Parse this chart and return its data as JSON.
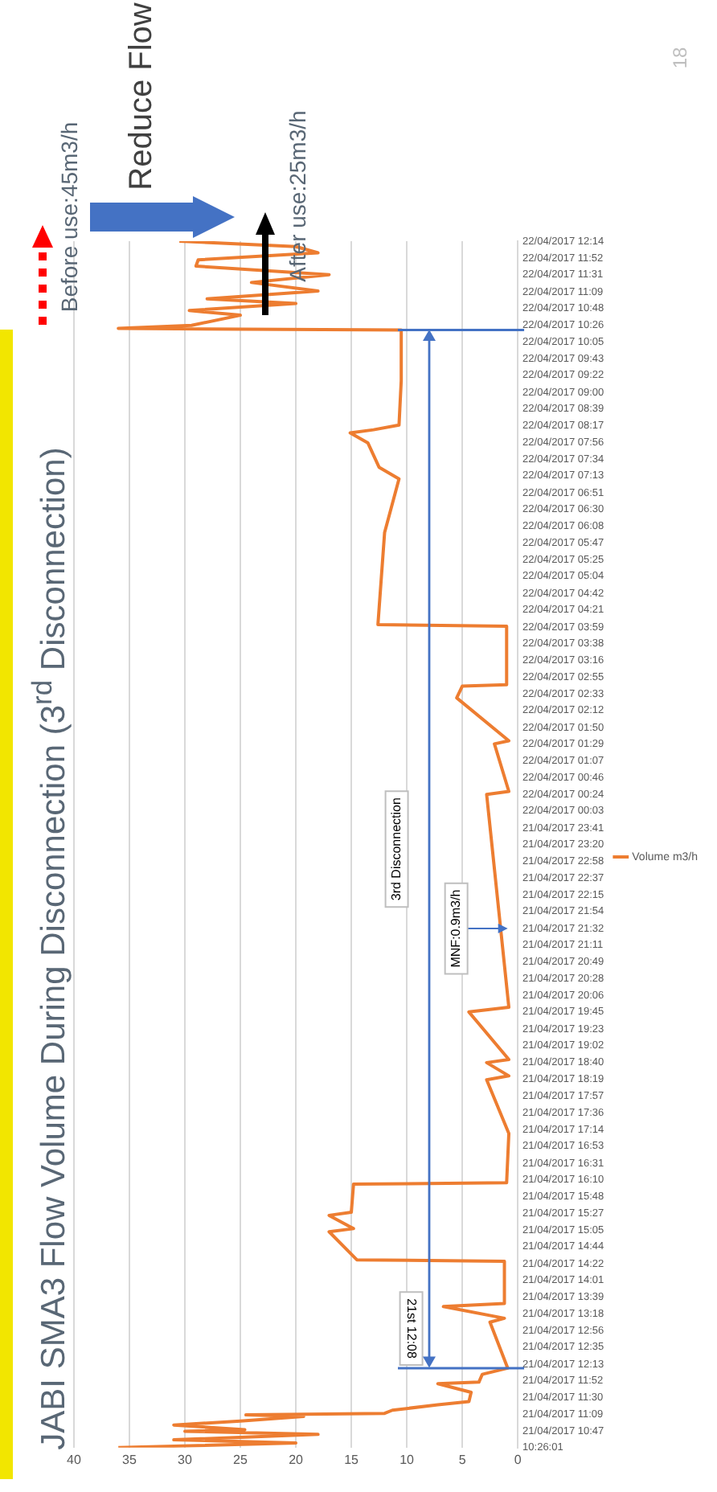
{
  "chart_data": {
    "type": "line",
    "title": "JABI SMA3 Flow Volume During Disconnection (3$^{rd}$ Disconnection)",
    "x": [
      "2017-04-21T10:26",
      "2017-04-21T10:32",
      "2017-04-21T10:36",
      "2017-04-21T10:43",
      "2017-04-21T10:47",
      "2017-04-21T10:49",
      "2017-04-21T10:55",
      "2017-04-21T11:00",
      "2017-04-21T11:06",
      "2017-04-21T11:08",
      "2017-04-21T11:10",
      "2017-04-21T11:14",
      "2017-04-21T11:21",
      "2017-04-21T11:25",
      "2017-04-21T11:37",
      "2017-04-21T11:48",
      "2017-04-21T11:50",
      "2017-04-21T12:00",
      "2017-04-21T12:08",
      "2017-04-21T13:07",
      "2017-04-21T13:12",
      "2017-04-21T13:27",
      "2017-04-21T13:31",
      "2017-04-21T14:25",
      "2017-04-21T14:27",
      "2017-04-21T15:03",
      "2017-04-21T15:07",
      "2017-04-21T15:24",
      "2017-04-21T15:28",
      "2017-04-21T16:04",
      "2017-04-21T16:06",
      "2017-04-21T17:09",
      "2017-04-21T18:18",
      "2017-04-21T18:23",
      "2017-04-21T18:40",
      "2017-04-21T18:44",
      "2017-04-21T19:45",
      "2017-04-21T19:51",
      "2017-04-22T00:24",
      "2017-04-22T00:28",
      "2017-04-22T01:29",
      "2017-04-22T01:33",
      "2017-04-22T02:28",
      "2017-04-22T02:43",
      "2017-04-22T02:45",
      "2017-04-22T04:00",
      "2017-04-22T04:02",
      "2017-04-22T06:00",
      "2017-04-22T07:09",
      "2017-04-22T07:24",
      "2017-04-22T07:55",
      "2017-04-22T08:08",
      "2017-04-22T08:12",
      "2017-04-22T08:18",
      "2017-04-22T09:15",
      "2017-04-22T10:20",
      "2017-04-22T10:22",
      "2017-04-22T10:26",
      "2017-04-22T10:39",
      "2017-04-22T10:45",
      "2017-04-22T10:54",
      "2017-04-22T11:00",
      "2017-04-22T11:10",
      "2017-04-22T11:21",
      "2017-04-22T11:31",
      "2017-04-22T11:42",
      "2017-04-22T11:50",
      "2017-04-22T11:59",
      "2017-04-22T12:07",
      "2017-04-22T12:14"
    ],
    "series": [
      {
        "name": "Volume m3/h",
        "color": "#ed7d31",
        "values": [
          36,
          20,
          31,
          18,
          30,
          24.6,
          31,
          25,
          19.3,
          24.5,
          12,
          11.3,
          7.2,
          4.4,
          4.2,
          7.2,
          3.5,
          3.2,
          0.9,
          2.5,
          1.2,
          6.7,
          1.2,
          1.2,
          14.5,
          17,
          14.8,
          17,
          15,
          14.8,
          1.0,
          0.8,
          2.8,
          0.8,
          2.8,
          0.8,
          4.4,
          0.8,
          2.8,
          0.8,
          2.1,
          0.8,
          5.5,
          5.0,
          1.0,
          1.0,
          12.6,
          12,
          10.7,
          12.5,
          13.5,
          15.1,
          13,
          10.7,
          10.5,
          10.5,
          36,
          29.4,
          25,
          29.6,
          20,
          28,
          18,
          24,
          17,
          29,
          28.8,
          18,
          20,
          30.5
        ]
      }
    ],
    "orientation": "horizontal",
    "xlim": [
      40,
      0
    ],
    "xticks": [
      0,
      5,
      10,
      15,
      20,
      25,
      30,
      35,
      40
    ],
    "ylim": [
      "2017-04-21T10:26",
      "2017-04-22T12:14"
    ],
    "yticks": [
      {
        "value": "2017-04-21T10:26",
        "label": "10:26:01"
      },
      {
        "value": "2017-04-21T10:47",
        "label": "21/04/2017 10:47"
      },
      {
        "value": "2017-04-21T11:09",
        "label": "21/04/2017 11:09"
      },
      {
        "value": "2017-04-21T11:30",
        "label": "21/04/2017 11:30"
      },
      {
        "value": "2017-04-21T11:52",
        "label": "21/04/2017 11:52"
      },
      {
        "value": "2017-04-21T12:13",
        "label": "21/04/2017 12:13"
      },
      {
        "value": "2017-04-21T12:35",
        "label": "21/04/2017 12:35"
      },
      {
        "value": "2017-04-21T12:56",
        "label": "21/04/2017 12:56"
      },
      {
        "value": "2017-04-21T13:18",
        "label": "21/04/2017 13:18"
      },
      {
        "value": "2017-04-21T13:39",
        "label": "21/04/2017 13:39"
      },
      {
        "value": "2017-04-21T14:01",
        "label": "21/04/2017 14:01"
      },
      {
        "value": "2017-04-21T14:22",
        "label": "21/04/2017 14:22"
      },
      {
        "value": "2017-04-21T14:44",
        "label": "21/04/2017 14:44"
      },
      {
        "value": "2017-04-21T15:05",
        "label": "21/04/2017 15:05"
      },
      {
        "value": "2017-04-21T15:27",
        "label": "21/04/2017 15:27"
      },
      {
        "value": "2017-04-21T15:48",
        "label": "21/04/2017 15:48"
      },
      {
        "value": "2017-04-21T16:10",
        "label": "21/04/2017 16:10"
      },
      {
        "value": "2017-04-21T16:31",
        "label": "21/04/2017 16:31"
      },
      {
        "value": "2017-04-21T16:53",
        "label": "21/04/2017 16:53"
      },
      {
        "value": "2017-04-21T17:14",
        "label": "21/04/2017 17:14"
      },
      {
        "value": "2017-04-21T17:36",
        "label": "21/04/2017 17:36"
      },
      {
        "value": "2017-04-21T17:57",
        "label": "21/04/2017 17:57"
      },
      {
        "value": "2017-04-21T18:19",
        "label": "21/04/2017 18:19"
      },
      {
        "value": "2017-04-21T18:40",
        "label": "21/04/2017 18:40"
      },
      {
        "value": "2017-04-21T19:02",
        "label": "21/04/2017 19:02"
      },
      {
        "value": "2017-04-21T19:23",
        "label": "21/04/2017 19:23"
      },
      {
        "value": "2017-04-21T19:45",
        "label": "21/04/2017 19:45"
      },
      {
        "value": "2017-04-21T20:06",
        "label": "21/04/2017 20:06"
      },
      {
        "value": "2017-04-21T20:28",
        "label": "21/04/2017 20:28"
      },
      {
        "value": "2017-04-21T20:49",
        "label": "21/04/2017 20:49"
      },
      {
        "value": "2017-04-21T21:11",
        "label": "21/04/2017 21:11"
      },
      {
        "value": "2017-04-21T21:32",
        "label": "21/04/2017 21:32"
      },
      {
        "value": "2017-04-21T21:54",
        "label": "21/04/2017 21:54"
      },
      {
        "value": "2017-04-21T22:15",
        "label": "21/04/2017 22:15"
      },
      {
        "value": "2017-04-21T22:37",
        "label": "21/04/2017 22:37"
      },
      {
        "value": "2017-04-21T22:58",
        "label": "21/04/2017 22:58"
      },
      {
        "value": "2017-04-21T23:20",
        "label": "21/04/2017 23:20"
      },
      {
        "value": "2017-04-21T23:41",
        "label": "21/04/2017 23:41"
      },
      {
        "value": "2017-04-22T00:03",
        "label": "22/04/2017 00:03"
      },
      {
        "value": "2017-04-22T00:24",
        "label": "22/04/2017 00:24"
      },
      {
        "value": "2017-04-22T00:46",
        "label": "22/04/2017 00:46"
      },
      {
        "value": "2017-04-22T01:07",
        "label": "22/04/2017 01:07"
      },
      {
        "value": "2017-04-22T01:29",
        "label": "22/04/2017 01:29"
      },
      {
        "value": "2017-04-22T01:50",
        "label": "22/04/2017 01:50"
      },
      {
        "value": "2017-04-22T02:12",
        "label": "22/04/2017 02:12"
      },
      {
        "value": "2017-04-22T02:33",
        "label": "22/04/2017 02:33"
      },
      {
        "value": "2017-04-22T02:55",
        "label": "22/04/2017 02:55"
      },
      {
        "value": "2017-04-22T03:16",
        "label": "22/04/2017 03:16"
      },
      {
        "value": "2017-04-22T03:38",
        "label": "22/04/2017 03:38"
      },
      {
        "value": "2017-04-22T03:59",
        "label": "22/04/2017 03:59"
      },
      {
        "value": "2017-04-22T04:21",
        "label": "22/04/2017 04:21"
      },
      {
        "value": "2017-04-22T04:42",
        "label": "22/04/2017 04:42"
      },
      {
        "value": "2017-04-22T05:04",
        "label": "22/04/2017 05:04"
      },
      {
        "value": "2017-04-22T05:25",
        "label": "22/04/2017 05:25"
      },
      {
        "value": "2017-04-22T05:47",
        "label": "22/04/2017 05:47"
      },
      {
        "value": "2017-04-22T06:08",
        "label": "22/04/2017 06:08"
      },
      {
        "value": "2017-04-22T06:30",
        "label": "22/04/2017 06:30"
      },
      {
        "value": "2017-04-22T06:51",
        "label": "22/04/2017 06:51"
      },
      {
        "value": "2017-04-22T07:13",
        "label": "22/04/2017 07:13"
      },
      {
        "value": "2017-04-22T07:34",
        "label": "22/04/2017 07:34"
      },
      {
        "value": "2017-04-22T07:56",
        "label": "22/04/2017 07:56"
      },
      {
        "value": "2017-04-22T08:17",
        "label": "22/04/2017 08:17"
      },
      {
        "value": "2017-04-22T08:39",
        "label": "22/04/2017 08:39"
      },
      {
        "value": "2017-04-22T09:00",
        "label": "22/04/2017 09:00"
      },
      {
        "value": "2017-04-22T09:22",
        "label": "22/04/2017 09:22"
      },
      {
        "value": "2017-04-22T09:43",
        "label": "22/04/2017 09:43"
      },
      {
        "value": "2017-04-22T10:05",
        "label": "22/04/2017 10:05"
      },
      {
        "value": "2017-04-22T10:26",
        "label": "22/04/2017 10:26"
      },
      {
        "value": "2017-04-22T10:48",
        "label": "22/04/2017 10:48"
      },
      {
        "value": "2017-04-22T11:09",
        "label": "22/04/2017 11:09"
      },
      {
        "value": "2017-04-22T11:31",
        "label": "22/04/2017 11:31"
      },
      {
        "value": "2017-04-22T11:52",
        "label": "22/04/2017 11:52"
      },
      {
        "value": "2017-04-22T12:14",
        "label": "22/04/2017 12:14"
      }
    ],
    "grid": "x",
    "legend": "right",
    "ref_lines": [
      {
        "axis": "y",
        "value": "2017-04-21T12:08",
        "label": "21st 12:08",
        "color": "#4472c4"
      },
      {
        "axis": "y",
        "value": "2017-04-22T10:20",
        "color": "#4472c4"
      }
    ],
    "annotations": [
      "Reduce Flow",
      "Before use:45m3/h",
      "18",
      "3rd Disconnection",
      {
        "text": "After use:25m3/h",
        "x": 22.7,
        "y": "2017-04-22T10:39"
      },
      {
        "text": "MNF:0.9m3/h",
        "x": 0.9,
        "y": "2017-04-21T21:32"
      }
    ]
  }
}
